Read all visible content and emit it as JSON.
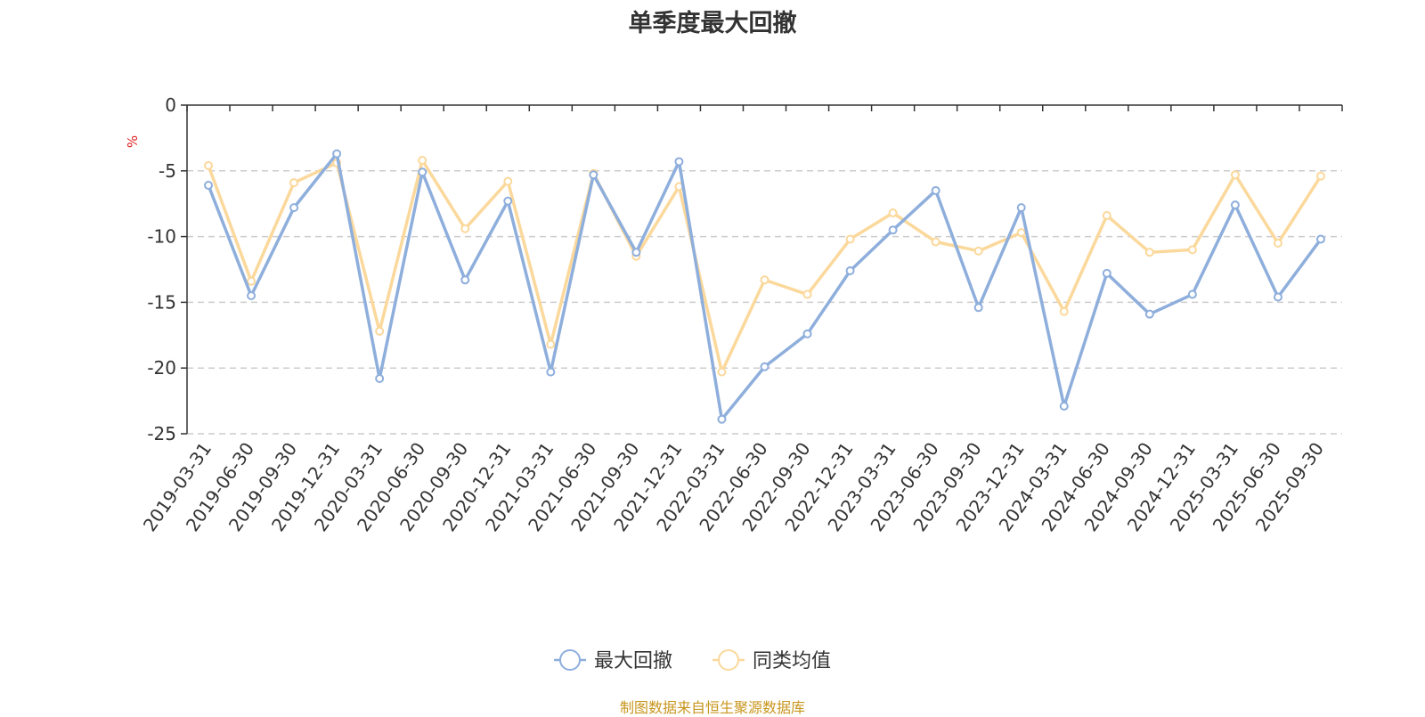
{
  "title": "单季度最大回撤",
  "source_note": "制图数据来自恒生聚源数据库",
  "chart_data": {
    "type": "line",
    "title": "单季度最大回撤",
    "ylabel": "%",
    "xlabel": "",
    "ylim": [
      -25,
      0
    ],
    "yticks": [
      0,
      -5,
      -10,
      -15,
      -20,
      -25
    ],
    "grid": true,
    "legend_position": "bottom-center",
    "categories": [
      "2019-03-31",
      "2019-06-30",
      "2019-09-30",
      "2019-12-31",
      "2020-03-31",
      "2020-06-30",
      "2020-09-30",
      "2020-12-31",
      "2021-03-31",
      "2021-06-30",
      "2021-09-30",
      "2021-12-31",
      "2022-03-31",
      "2022-06-30",
      "2022-09-30",
      "2022-12-31",
      "2023-03-31",
      "2023-06-30",
      "2023-09-30",
      "2023-12-31",
      "2024-03-31",
      "2024-06-30",
      "2024-09-30",
      "2024-12-31",
      "2025-03-31",
      "2025-06-30",
      "2025-09-30"
    ],
    "series": [
      {
        "name": "最大回撤",
        "color": "#8eaedc",
        "values": [
          -6.1,
          -14.5,
          -7.8,
          -3.7,
          -20.8,
          -5.1,
          -13.3,
          -7.3,
          -20.3,
          -5.3,
          -11.2,
          -4.3,
          -23.9,
          -19.9,
          -17.4,
          -12.6,
          -9.5,
          -6.5,
          -15.4,
          -7.8,
          -22.9,
          -12.8,
          -15.9,
          -14.4,
          -7.6,
          -14.6,
          -10.2
        ]
      },
      {
        "name": "同类均值",
        "color": "#fbd89b",
        "values": [
          -4.6,
          -13.4,
          -5.9,
          -4.4,
          -17.2,
          -4.2,
          -9.4,
          -5.8,
          -18.2,
          -5.2,
          -11.5,
          -6.2,
          -20.3,
          -13.3,
          -14.4,
          -10.2,
          -8.2,
          -10.4,
          -11.1,
          -9.7,
          -15.7,
          -8.4,
          -11.2,
          -11.0,
          -5.3,
          -10.5,
          -5.4
        ]
      }
    ]
  }
}
